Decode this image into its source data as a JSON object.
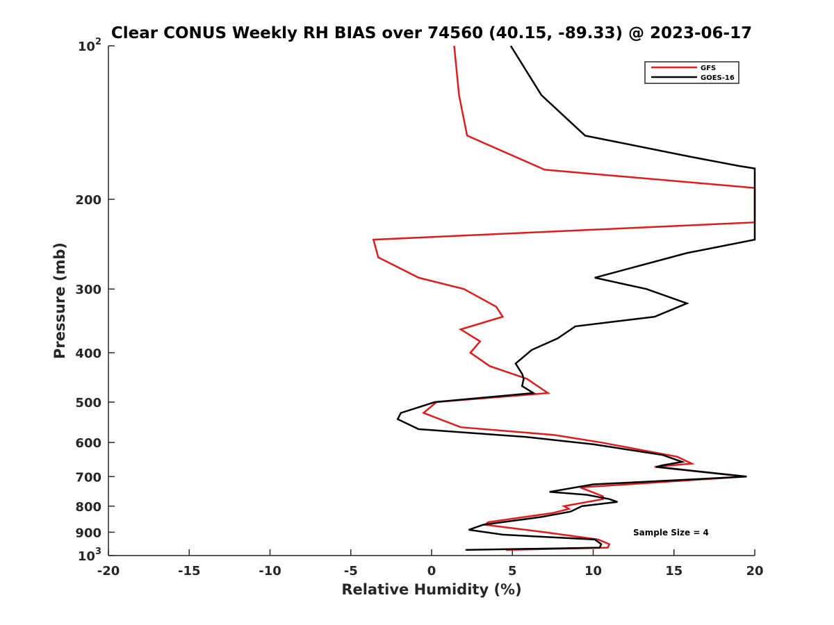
{
  "chart_data": {
    "type": "line",
    "title": "Clear CONUS Weekly RH BIAS over 74560 (40.15, -89.33) @ 2023-06-17",
    "xlabel": "Relative Humidity (%)",
    "ylabel": "Pressure (mb)",
    "xlim": [
      -20,
      20
    ],
    "ylim": [
      100,
      1000
    ],
    "y_scale": "log",
    "y_reversed": true,
    "x_ticks": [
      -20,
      -15,
      -10,
      -5,
      0,
      5,
      10,
      15,
      20
    ],
    "x_tick_labels": [
      "-20",
      "-15",
      "-10",
      "-5",
      "0",
      "5",
      "10",
      "15",
      "20"
    ],
    "y_ticks": [
      100,
      200,
      300,
      400,
      500,
      600,
      700,
      800,
      900,
      1000
    ],
    "y_tick_labels": [
      {
        "base": "10",
        "exp": "2"
      },
      {
        "base": "200",
        "exp": ""
      },
      {
        "base": "300",
        "exp": ""
      },
      {
        "base": "400",
        "exp": ""
      },
      {
        "base": "500",
        "exp": ""
      },
      {
        "base": "600",
        "exp": ""
      },
      {
        "base": "700",
        "exp": ""
      },
      {
        "base": "800",
        "exp": ""
      },
      {
        "base": "900",
        "exp": ""
      },
      {
        "base": "10",
        "exp": "3"
      }
    ],
    "grid": false,
    "legend_position": "top-right",
    "series": [
      {
        "name": "GFS",
        "color": "#e31a1c",
        "points": [
          [
            1.4,
            100
          ],
          [
            1.7,
            125
          ],
          [
            2.2,
            150
          ],
          [
            7.0,
            175
          ],
          [
            20.0,
            190
          ],
          [
            20.0,
            222
          ],
          [
            -3.6,
            240
          ],
          [
            -3.3,
            260
          ],
          [
            -0.8,
            285
          ],
          [
            2.0,
            300
          ],
          [
            4.0,
            325
          ],
          [
            4.4,
            340
          ],
          [
            1.8,
            360
          ],
          [
            3.0,
            380
          ],
          [
            2.4,
            400
          ],
          [
            3.6,
            425
          ],
          [
            5.9,
            450
          ],
          [
            7.2,
            480
          ],
          [
            0.3,
            500
          ],
          [
            -0.5,
            525
          ],
          [
            1.8,
            560
          ],
          [
            7.6,
            580
          ],
          [
            10.5,
            600
          ],
          [
            15.2,
            640
          ],
          [
            16.1,
            660
          ],
          [
            13.8,
            670
          ],
          [
            19.4,
            700
          ],
          [
            9.2,
            735
          ],
          [
            10.6,
            765
          ],
          [
            10.6,
            775
          ],
          [
            8.2,
            800
          ],
          [
            8.5,
            810
          ],
          [
            7.5,
            825
          ],
          [
            3.5,
            860
          ],
          [
            3.3,
            870
          ],
          [
            7.0,
            900
          ],
          [
            10.3,
            930
          ],
          [
            11.0,
            950
          ],
          [
            10.9,
            965
          ],
          [
            4.6,
            975
          ]
        ]
      },
      {
        "name": "GOES-16",
        "color": "#000000",
        "points": [
          [
            4.9,
            100
          ],
          [
            6.8,
            125
          ],
          [
            9.5,
            150
          ],
          [
            16.0,
            165
          ],
          [
            19.0,
            172
          ],
          [
            20.0,
            174
          ],
          [
            20.0,
            240
          ],
          [
            15.8,
            255
          ],
          [
            10.1,
            285
          ],
          [
            13.3,
            300
          ],
          [
            15.8,
            320
          ],
          [
            13.8,
            340
          ],
          [
            8.9,
            355
          ],
          [
            7.8,
            375
          ],
          [
            6.2,
            395
          ],
          [
            5.2,
            420
          ],
          [
            5.6,
            440
          ],
          [
            5.7,
            450
          ],
          [
            5.6,
            465
          ],
          [
            6.3,
            480
          ],
          [
            0.2,
            500
          ],
          [
            -1.9,
            525
          ],
          [
            -2.1,
            540
          ],
          [
            -0.8,
            565
          ],
          [
            5.8,
            585
          ],
          [
            10.0,
            605
          ],
          [
            14.3,
            635
          ],
          [
            15.5,
            655
          ],
          [
            14.3,
            665
          ],
          [
            13.9,
            670
          ],
          [
            19.5,
            700
          ],
          [
            10.0,
            725
          ],
          [
            7.3,
            750
          ],
          [
            9.6,
            760
          ],
          [
            11.0,
            775
          ],
          [
            11.5,
            785
          ],
          [
            9.3,
            800
          ],
          [
            8.6,
            820
          ],
          [
            6.8,
            840
          ],
          [
            3.2,
            870
          ],
          [
            2.3,
            890
          ],
          [
            4.4,
            910
          ],
          [
            10.1,
            930
          ],
          [
            10.5,
            950
          ],
          [
            10.4,
            965
          ],
          [
            2.1,
            975
          ]
        ]
      }
    ],
    "annotation": "Sample Size = 4"
  }
}
